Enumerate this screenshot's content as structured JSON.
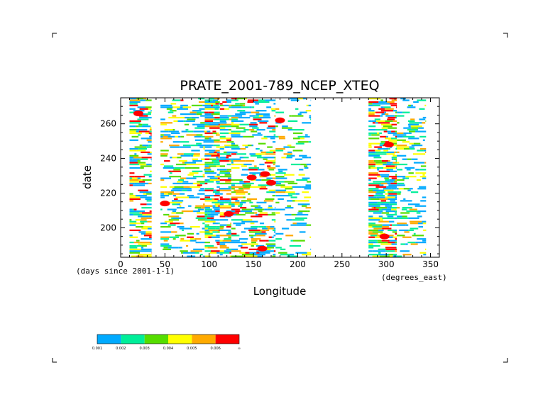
{
  "chart_data": {
    "type": "heatmap",
    "title": "PRATE_2001-789_NCEP_XTEQ",
    "xlabel": "Longitude",
    "ylabel": "date",
    "x_units_label": "(degrees_east)",
    "y_units_label": "(days since 2001-1-1)",
    "xlim": [
      0,
      360
    ],
    "ylim": [
      183,
      275
    ],
    "x_ticks": [
      0,
      50,
      100,
      150,
      200,
      250,
      300,
      350
    ],
    "y_ticks": [
      200,
      220,
      240,
      260
    ],
    "grid": false,
    "legend": {
      "placement": "bottom-left",
      "colors": [
        "#00aaff",
        "#00ee99",
        "#55dd00",
        "#ffff00",
        "#ffaa00",
        "#ff0000"
      ],
      "tick_labels": [
        "0.001",
        "0.002",
        "0.003",
        "0.004",
        "0.005",
        "0.006",
        "∞"
      ]
    },
    "bands": [
      {
        "lon": [
          10,
          35
        ],
        "intensity": 0.62
      },
      {
        "lon": [
          45,
          95
        ],
        "intensity": 0.42
      },
      {
        "lon": [
          95,
          112
        ],
        "intensity": 0.72
      },
      {
        "lon": [
          112,
          125
        ],
        "intensity": 0.58
      },
      {
        "lon": [
          125,
          175
        ],
        "intensity": 0.5
      },
      {
        "lon": [
          175,
          215
        ],
        "intensity": 0.28
      },
      {
        "lon": [
          280,
          312
        ],
        "intensity": 0.68
      },
      {
        "lon": [
          312,
          345
        ],
        "intensity": 0.32
      }
    ],
    "hotspots": [
      {
        "lon": 148,
        "date": 229,
        "value": 0.0065
      },
      {
        "lon": 163,
        "date": 231,
        "value": 0.0068
      },
      {
        "lon": 170,
        "date": 226,
        "value": 0.006
      },
      {
        "lon": 50,
        "date": 214,
        "value": 0.006
      },
      {
        "lon": 122,
        "date": 208,
        "value": 0.0058
      },
      {
        "lon": 160,
        "date": 188,
        "value": 0.0056
      },
      {
        "lon": 303,
        "date": 248,
        "value": 0.0062
      },
      {
        "lon": 298,
        "date": 195,
        "value": 0.006
      },
      {
        "lon": 20,
        "date": 266,
        "value": 0.0058
      },
      {
        "lon": 180,
        "date": 262,
        "value": 0.0057
      }
    ]
  }
}
